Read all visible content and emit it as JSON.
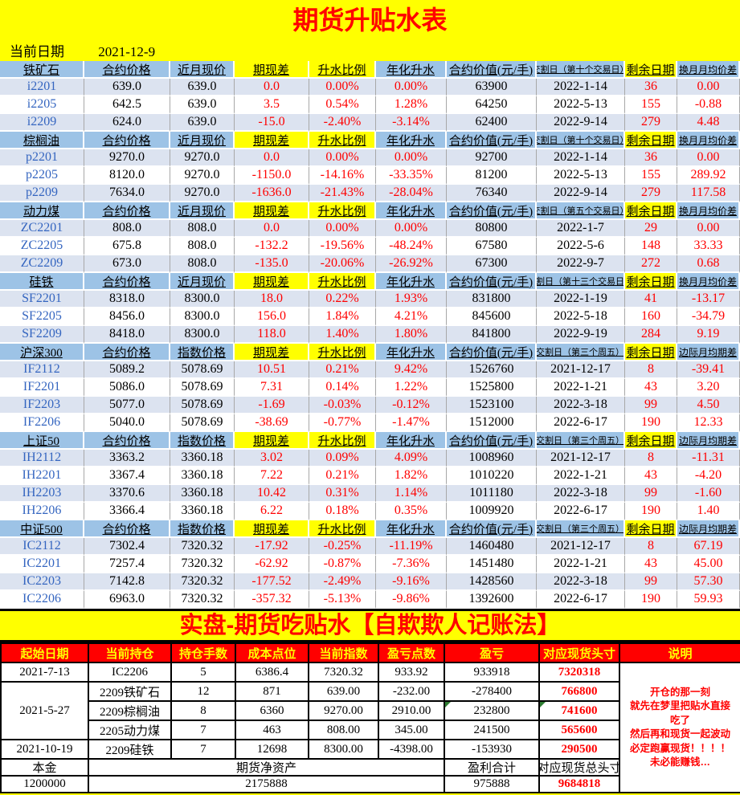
{
  "page": {
    "title": "期货升贴水表",
    "date_label": "当前日期",
    "date_value": "2021-12-9"
  },
  "colors": {
    "accent_red": "#FF0000",
    "header_blue": "#9DC3E6",
    "stripe_blue": "#DCE3F0",
    "page_yellow": "#FFFF00",
    "code_blue": "#3465C0",
    "flag_green": "#2e7d32"
  },
  "top_table": {
    "common_headers": {
      "diff": "期现差",
      "ratio": "升水比例",
      "annual": "年化升水",
      "value": "合约价值(元/手)",
      "days": "剩余日期"
    },
    "sections": [
      {
        "name": "铁矿石",
        "price_label": "合约价格",
        "spot_label": "近月现价",
        "delivery_label": "交割日（第十个交易日）",
        "last_label": "换月月均价差",
        "rows": [
          {
            "code": "i2201",
            "price": "639.0",
            "spot": "639.0",
            "diff": "0.0",
            "ratio": "0.00%",
            "annual": "0.00%",
            "value": "63900",
            "date": "2022-1-14",
            "days": "36",
            "last": "0.00"
          },
          {
            "code": "i2205",
            "price": "642.5",
            "spot": "639.0",
            "diff": "3.5",
            "ratio": "0.54%",
            "annual": "1.28%",
            "value": "64250",
            "date": "2022-5-13",
            "days": "155",
            "last": "-0.88"
          },
          {
            "code": "i2209",
            "price": "624.0",
            "spot": "639.0",
            "diff": "-15.0",
            "ratio": "-2.40%",
            "annual": "-3.14%",
            "value": "62400",
            "date": "2022-9-14",
            "days": "279",
            "last": "4.48"
          }
        ]
      },
      {
        "name": "棕榈油",
        "price_label": "合约价格",
        "spot_label": "近月现价",
        "delivery_label": "交割日（第十个交易日）",
        "last_label": "换月月均价差",
        "rows": [
          {
            "code": "p2201",
            "price": "9270.0",
            "spot": "9270.0",
            "diff": "0.0",
            "ratio": "0.00%",
            "annual": "0.00%",
            "value": "92700",
            "date": "2022-1-14",
            "days": "36",
            "last": "0.00"
          },
          {
            "code": "p2205",
            "price": "8120.0",
            "spot": "9270.0",
            "diff": "-1150.0",
            "ratio": "-14.16%",
            "annual": "-33.35%",
            "value": "81200",
            "date": "2022-5-13",
            "days": "155",
            "last": "289.92"
          },
          {
            "code": "p2209",
            "price": "7634.0",
            "spot": "9270.0",
            "diff": "-1636.0",
            "ratio": "-21.43%",
            "annual": "-28.04%",
            "value": "76340",
            "date": "2022-9-14",
            "days": "279",
            "last": "117.58"
          }
        ]
      },
      {
        "name": "动力煤",
        "price_label": "合约价格",
        "spot_label": "近月现价",
        "delivery_label": "交割日（第五个交易日）",
        "last_label": "换月月均价差",
        "rows": [
          {
            "code": "ZC2201",
            "price": "808.0",
            "spot": "808.0",
            "diff": "0.0",
            "ratio": "0.00%",
            "annual": "0.00%",
            "value": "80800",
            "date": "2022-1-7",
            "days": "29",
            "last": "0.00"
          },
          {
            "code": "ZC2205",
            "price": "675.8",
            "spot": "808.0",
            "diff": "-132.2",
            "ratio": "-19.56%",
            "annual": "-48.24%",
            "value": "67580",
            "date": "2022-5-6",
            "days": "148",
            "last": "33.33"
          },
          {
            "code": "ZC2209",
            "price": "673.0",
            "spot": "808.0",
            "diff": "-135.0",
            "ratio": "-20.06%",
            "annual": "-26.92%",
            "value": "67300",
            "date": "2022-9-7",
            "days": "272",
            "last": "0.68"
          }
        ]
      },
      {
        "name": "硅铁",
        "price_label": "合约价格",
        "spot_label": "近月现价",
        "delivery_label": "交割日（第十三个交易日）",
        "last_label": "换月月均价差",
        "rows": [
          {
            "code": "SF2201",
            "price": "8318.0",
            "spot": "8300.0",
            "diff": "18.0",
            "ratio": "0.22%",
            "annual": "1.93%",
            "value": "831800",
            "date": "2022-1-19",
            "days": "41",
            "last": "-13.17"
          },
          {
            "code": "SF2205",
            "price": "8456.0",
            "spot": "8300.0",
            "diff": "156.0",
            "ratio": "1.84%",
            "annual": "4.21%",
            "value": "845600",
            "date": "2022-5-18",
            "days": "160",
            "last": "-34.79"
          },
          {
            "code": "SF2209",
            "price": "8418.0",
            "spot": "8300.0",
            "diff": "118.0",
            "ratio": "1.40%",
            "annual": "1.80%",
            "value": "841800",
            "date": "2022-9-19",
            "days": "284",
            "last": "9.19"
          }
        ]
      },
      {
        "name": "沪深300",
        "price_label": "合约价格",
        "spot_label": "指数价格",
        "delivery_label": "交割日（第三个周五）",
        "last_label": "边际月均期差",
        "rows": [
          {
            "code": "IF2112",
            "price": "5089.2",
            "spot": "5078.69",
            "diff": "10.51",
            "ratio": "0.21%",
            "annual": "9.42%",
            "value": "1526760",
            "date": "2021-12-17",
            "days": "8",
            "last": "-39.41"
          },
          {
            "code": "IF2201",
            "price": "5086.0",
            "spot": "5078.69",
            "diff": "7.31",
            "ratio": "0.14%",
            "annual": "1.22%",
            "value": "1525800",
            "date": "2022-1-21",
            "days": "43",
            "last": "3.20"
          },
          {
            "code": "IF2203",
            "price": "5077.0",
            "spot": "5078.69",
            "diff": "-1.69",
            "ratio": "-0.03%",
            "annual": "-0.12%",
            "value": "1523100",
            "date": "2022-3-18",
            "days": "99",
            "last": "4.50"
          },
          {
            "code": "IF2206",
            "price": "5040.0",
            "spot": "5078.69",
            "diff": "-38.69",
            "ratio": "-0.77%",
            "annual": "-1.47%",
            "value": "1512000",
            "date": "2022-6-17",
            "days": "190",
            "last": "12.33"
          }
        ]
      },
      {
        "name": "上证50",
        "price_label": "合约价格",
        "spot_label": "指数价格",
        "delivery_label": "交割日（第三个周五）",
        "last_label": "边际月均期差",
        "rows": [
          {
            "code": "IH2112",
            "price": "3363.2",
            "spot": "3360.18",
            "diff": "3.02",
            "ratio": "0.09%",
            "annual": "4.09%",
            "value": "1008960",
            "date": "2021-12-17",
            "days": "8",
            "last": "-11.31"
          },
          {
            "code": "IH2201",
            "price": "3367.4",
            "spot": "3360.18",
            "diff": "7.22",
            "ratio": "0.21%",
            "annual": "1.82%",
            "value": "1010220",
            "date": "2022-1-21",
            "days": "43",
            "last": "-4.20"
          },
          {
            "code": "IH2203",
            "price": "3370.6",
            "spot": "3360.18",
            "diff": "10.42",
            "ratio": "0.31%",
            "annual": "1.14%",
            "value": "1011180",
            "date": "2022-3-18",
            "days": "99",
            "last": "-1.60"
          },
          {
            "code": "IH2206",
            "price": "3366.4",
            "spot": "3360.18",
            "diff": "6.22",
            "ratio": "0.18%",
            "annual": "0.35%",
            "value": "1009920",
            "date": "2022-6-17",
            "days": "190",
            "last": "1.40"
          }
        ]
      },
      {
        "name": "中证500",
        "price_label": "合约价格",
        "spot_label": "指数价格",
        "delivery_label": "交割日（第三个周五）",
        "last_label": "边际月均期差",
        "rows": [
          {
            "code": "IC2112",
            "price": "7302.4",
            "spot": "7320.32",
            "diff": "-17.92",
            "ratio": "-0.25%",
            "annual": "-11.19%",
            "value": "1460480",
            "date": "2021-12-17",
            "days": "8",
            "last": "67.19"
          },
          {
            "code": "IC2201",
            "price": "7257.4",
            "spot": "7320.32",
            "diff": "-62.92",
            "ratio": "-0.87%",
            "annual": "-7.36%",
            "value": "1451480",
            "date": "2022-1-21",
            "days": "43",
            "last": "45.00"
          },
          {
            "code": "IC2203",
            "price": "7142.8",
            "spot": "7320.32",
            "diff": "-177.52",
            "ratio": "-2.49%",
            "annual": "-9.16%",
            "value": "1428560",
            "date": "2022-3-18",
            "days": "99",
            "last": "57.30"
          },
          {
            "code": "IC2206",
            "price": "6963.0",
            "spot": "7320.32",
            "diff": "-357.32",
            "ratio": "-5.13%",
            "annual": "-9.86%",
            "value": "1392600",
            "date": "2022-6-17",
            "days": "190",
            "last": "59.93"
          }
        ]
      }
    ]
  },
  "banner": {
    "text": "实盘-期货吃贴水【自欺欺人记账法】"
  },
  "bottom_table": {
    "headers": [
      "起始日期",
      "当前持仓",
      "持仓手数",
      "成本点位",
      "当前指数",
      "盈亏点数",
      "盈亏",
      "对应现货头寸",
      "说明"
    ],
    "rows": [
      {
        "date": "2021-7-13",
        "date_span": 1,
        "position": "IC2206",
        "lots": "5",
        "cost": "6386.4",
        "index": "7320.32",
        "points": "933.92",
        "pnl": "933918",
        "spot": "7320318"
      },
      {
        "date": "2021-5-27",
        "date_span": 3,
        "position": "2209铁矿石",
        "lots": "12",
        "cost": "871",
        "index": "639.00",
        "points": "-232.00",
        "pnl": "-278400",
        "spot": "766800"
      },
      {
        "position": "2209棕榈油",
        "lots": "8",
        "cost": "6360",
        "index": "9270.00",
        "points": "2910.00",
        "pnl": "232800",
        "spot": "741600",
        "flag_pnl": true,
        "flag_spot": true
      },
      {
        "position": "2205动力煤",
        "lots": "7",
        "cost": "463",
        "index": "808.00",
        "points": "345.00",
        "pnl": "241500",
        "spot": "565600"
      },
      {
        "date": "2021-10-19",
        "date_span": 1,
        "position": "2209硅铁",
        "lots": "7",
        "cost": "12698",
        "index": "8300.00",
        "points": "-4398.00",
        "pnl": "-153930",
        "spot": "290500"
      }
    ],
    "summary": {
      "principal_label": "本金",
      "principal": "1200000",
      "net_label": "期货净资产",
      "net": "2175888",
      "profit_label": "盈利合计",
      "profit": "975888",
      "spot_total_label": "对应现货总头寸",
      "spot_total": "9684818"
    },
    "note_lines": [
      "开仓的那一刻",
      "就先在梦里把贴水直接",
      "吃了",
      "然后再和现货一起波动",
      "必定跑赢现货！！！！",
      "未必能赚钱…"
    ]
  }
}
